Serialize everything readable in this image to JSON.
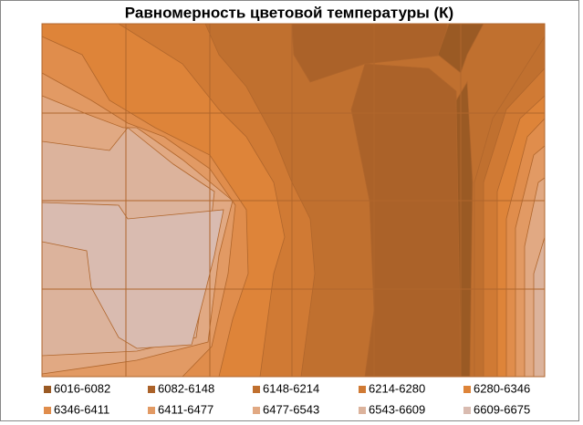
{
  "chart_data": {
    "type": "contour",
    "title": "Равномерность цветовой температуры (К)",
    "series": [
      {
        "name": "6016-6082",
        "color": "#9a5a24"
      },
      {
        "name": "6082-6148",
        "color": "#ab6229"
      },
      {
        "name": "6148-6214",
        "color": "#c0702f"
      },
      {
        "name": "6214-6280",
        "color": "#d07a34"
      },
      {
        "name": "6280-6346",
        "color": "#de8439"
      },
      {
        "name": "6346-6411",
        "color": "#e08d4c"
      },
      {
        "name": "6411-6477",
        "color": "#e29a64"
      },
      {
        "name": "6477-6543",
        "color": "#e1a983"
      },
      {
        "name": "6543-6609",
        "color": "#dcb39c"
      },
      {
        "name": "6609-6675",
        "color": "#d9bbb0"
      }
    ]
  }
}
